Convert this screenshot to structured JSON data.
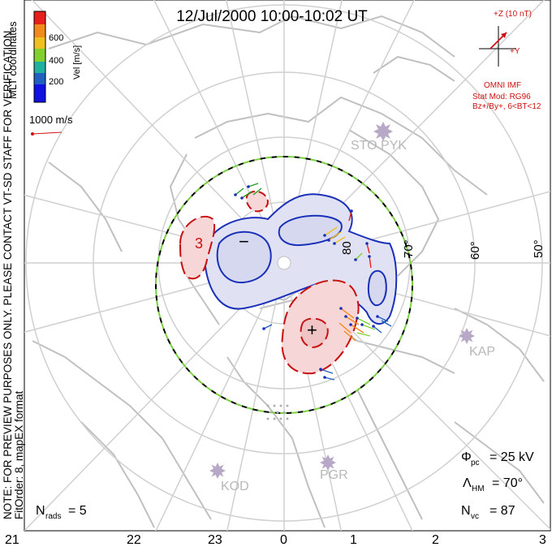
{
  "title": "12/Jul/2000 10:00-10:02 UT",
  "colorbar": {
    "label": "Vel [m/s]",
    "ticks": [
      "600",
      "400",
      "200"
    ],
    "colors": [
      "#e8201c",
      "#f08a1c",
      "#f0c020",
      "#80d030",
      "#20b0a0",
      "#2060c0",
      "#1010e0"
    ],
    "coord_label": "MLT coordinates"
  },
  "scale_vector": "1000 m/s",
  "imf": {
    "bz_label": "+Z (10 nT)",
    "by_label": "+Y",
    "source": "OMNI IMF",
    "model": "Stat Mod: RG96",
    "condition": "Bz+/By+, 6<BT<12",
    "color": "#d01010"
  },
  "watermark": "NOTE: FOR PREVIEW PURPOSES ONLY. PLEASE CONTACT VT-SD STAFF FOR VERIFICATION.",
  "fit_order": "FitOrder: 8, mapEX format",
  "stations": [
    "STO PYK",
    "KAP",
    "KOD",
    "PGR"
  ],
  "latitude_labels": [
    "80",
    "70°",
    "60°",
    "50°"
  ],
  "extrema": {
    "min": "−",
    "max": "+"
  },
  "contour_label": "3",
  "stats": {
    "phi_pc": {
      "symbol": "Φ",
      "sub": "pc",
      "value": "= 25 kV"
    },
    "lambda_hm": {
      "symbol": "Λ",
      "sub": "HM",
      "value": "= 70°"
    },
    "n_vc": {
      "symbol": "N",
      "sub": "vc",
      "value": "= 87"
    },
    "n_rads": {
      "symbol": "N",
      "sub": "rads",
      "value": "= 5"
    }
  },
  "mlt_axis": [
    "21",
    "22",
    "23",
    "0",
    "1",
    "2",
    "3"
  ]
}
